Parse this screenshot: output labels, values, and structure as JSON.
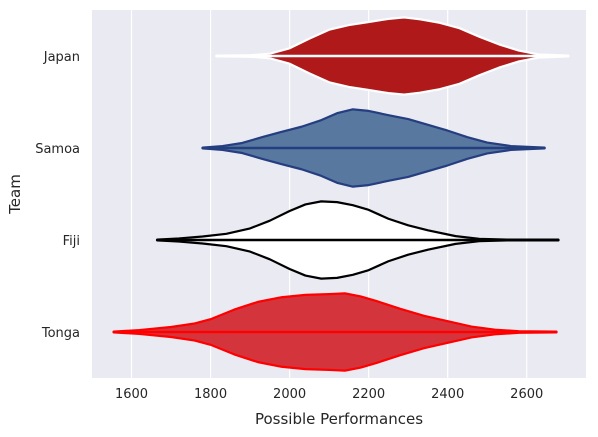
{
  "chart_data": {
    "type": "violin",
    "orientation": "horizontal",
    "xlabel": "Possible Performances",
    "ylabel": "Team",
    "xlim": [
      1500,
      2750
    ],
    "xticks": [
      1600,
      1800,
      2000,
      2200,
      2400,
      2600
    ],
    "grid": true,
    "background": "#eaeaf2",
    "categories": [
      "Japan",
      "Samoa",
      "Fiji",
      "Tonga"
    ],
    "series": [
      {
        "name": "Japan",
        "fill": "#b0191a",
        "edge": "#ffffff",
        "range": [
          1815,
          2705
        ],
        "density_x": [
          1815,
          1900,
          1950,
          2000,
          2050,
          2100,
          2150,
          2200,
          2250,
          2290,
          2330,
          2380,
          2430,
          2480,
          2530,
          2580,
          2630,
          2705
        ],
        "density_w": [
          0.01,
          0.02,
          0.06,
          0.2,
          0.45,
          0.68,
          0.8,
          0.88,
          0.96,
          1.0,
          0.95,
          0.86,
          0.72,
          0.5,
          0.3,
          0.14,
          0.04,
          0.01
        ]
      },
      {
        "name": "Samoa",
        "fill": "#5878a0",
        "edge": "#243e80",
        "range": [
          1780,
          2645
        ],
        "density_x": [
          1780,
          1830,
          1880,
          1930,
          1980,
          2030,
          2080,
          2120,
          2160,
          2200,
          2250,
          2300,
          2350,
          2400,
          2450,
          2500,
          2560,
          2645
        ],
        "density_w": [
          0.01,
          0.05,
          0.13,
          0.28,
          0.42,
          0.55,
          0.72,
          0.9,
          1.0,
          0.96,
          0.85,
          0.75,
          0.6,
          0.45,
          0.28,
          0.14,
          0.05,
          0.01
        ]
      },
      {
        "name": "Fiji",
        "fill": "#ffffff",
        "edge": "#000000",
        "range": [
          1665,
          2680
        ],
        "density_x": [
          1665,
          1720,
          1780,
          1840,
          1900,
          1950,
          2000,
          2040,
          2080,
          2120,
          2160,
          2200,
          2250,
          2300,
          2350,
          2420,
          2480,
          2550,
          2680
        ],
        "density_w": [
          0.01,
          0.04,
          0.09,
          0.16,
          0.3,
          0.5,
          0.75,
          0.92,
          1.0,
          0.98,
          0.9,
          0.78,
          0.55,
          0.38,
          0.25,
          0.1,
          0.03,
          0.01,
          0.01
        ]
      },
      {
        "name": "Tonga",
        "fill": "#d4343c",
        "edge": "#ff0000",
        "range": [
          1555,
          2675
        ],
        "density_x": [
          1555,
          1620,
          1700,
          1760,
          1800,
          1860,
          1920,
          1980,
          2040,
          2100,
          2140,
          2180,
          2220,
          2280,
          2340,
          2400,
          2460,
          2520,
          2580,
          2675
        ],
        "density_w": [
          0.01,
          0.05,
          0.13,
          0.22,
          0.33,
          0.58,
          0.78,
          0.9,
          0.96,
          0.98,
          1.0,
          0.92,
          0.8,
          0.6,
          0.42,
          0.28,
          0.14,
          0.06,
          0.02,
          0.01
        ]
      }
    ]
  }
}
